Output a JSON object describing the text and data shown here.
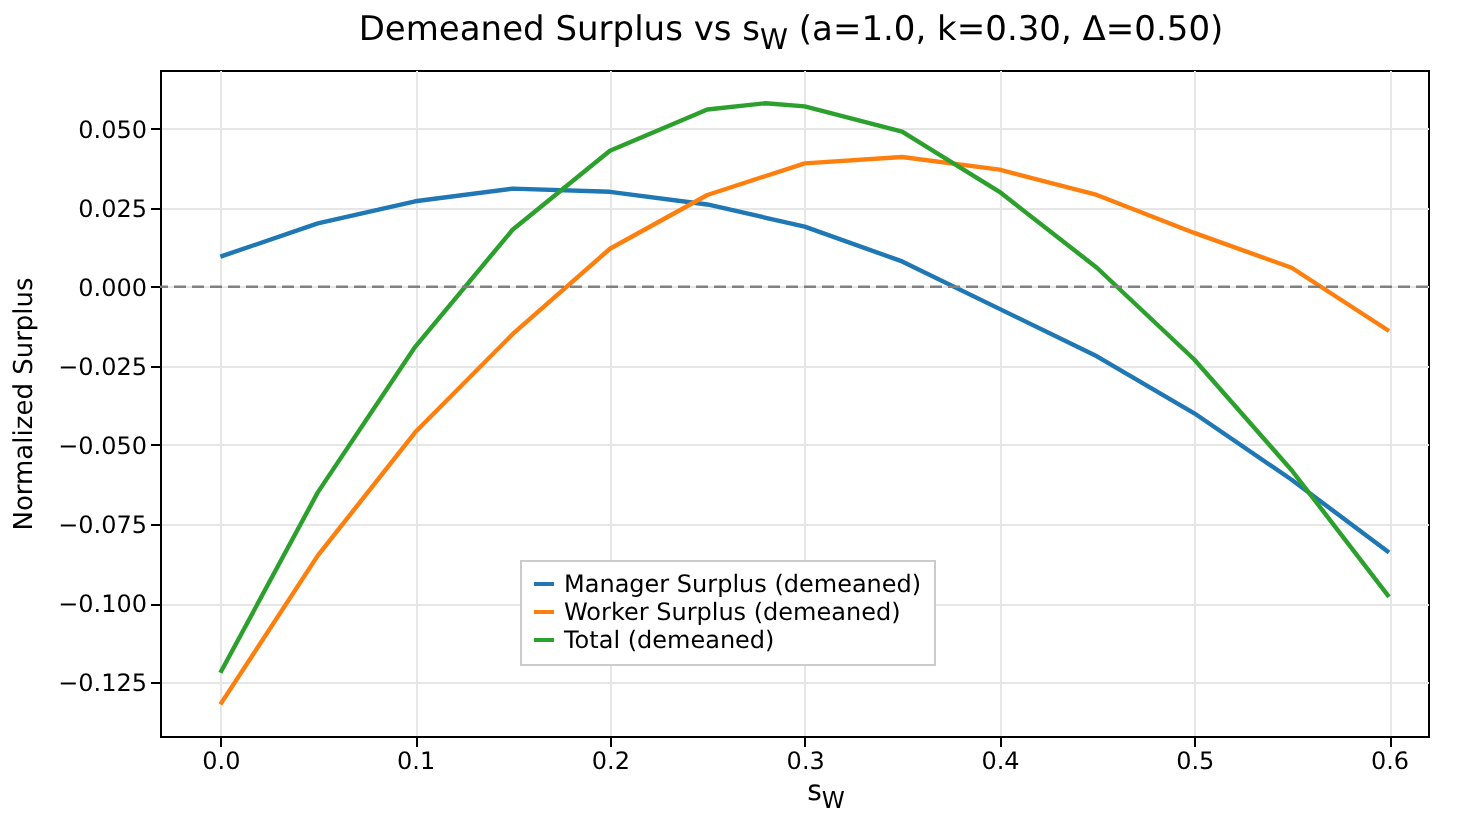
{
  "chart_data": {
    "type": "line",
    "title": "Demeaned Surplus vs s$_{W}$  (a=1.0, k=0.30, Δ=0.50)",
    "xlabel": "s$_{W}$",
    "ylabel": "Normalized Surplus",
    "x": [
      0,
      0.05,
      0.1,
      0.15,
      0.2,
      0.25,
      0.3,
      0.35,
      0.4,
      0.45,
      0.5,
      0.55,
      0.6
    ],
    "series": [
      {
        "name": "Manager Surplus (demeaned)",
        "color": "#1f77b4",
        "values": [
          0.0095,
          0.02,
          0.027,
          0.031,
          0.03,
          0.026,
          0.019,
          0.008,
          -0.007,
          -0.022,
          -0.04,
          -0.061,
          -0.084
        ]
      },
      {
        "name": "Worker Surplus (demeaned)",
        "color": "#ff7f0e",
        "values": [
          -0.132,
          -0.085,
          -0.046,
          -0.015,
          0.012,
          0.029,
          0.039,
          0.041,
          0.037,
          0.029,
          0.017,
          0.006,
          -0.014
        ]
      },
      {
        "name": "Total (demeaned)",
        "color": "#2ca02c",
        "x": [
          0,
          0.05,
          0.1,
          0.15,
          0.2,
          0.25,
          0.28,
          0.3,
          0.35,
          0.4,
          0.45,
          0.5,
          0.55,
          0.6
        ],
        "values": [
          -0.122,
          -0.065,
          -0.019,
          0.018,
          0.043,
          0.056,
          0.058,
          0.057,
          0.049,
          0.03,
          0.006,
          -0.023,
          -0.058,
          -0.098
        ]
      }
    ],
    "xlim": [
      -0.031,
      0.62
    ],
    "ylim": [
      -0.142,
      0.0685
    ],
    "xticks": [
      {
        "value": 0,
        "label": "0.0"
      },
      {
        "value": 0.1,
        "label": "0.1"
      },
      {
        "value": 0.2,
        "label": "0.2"
      },
      {
        "value": 0.3,
        "label": "0.3"
      },
      {
        "value": 0.4,
        "label": "0.4"
      },
      {
        "value": 0.5,
        "label": "0.5"
      },
      {
        "value": 0.6,
        "label": "0.6"
      }
    ],
    "yticks": [
      {
        "value": -0.125,
        "label": "−0.125"
      },
      {
        "value": -0.1,
        "label": "−0.100"
      },
      {
        "value": -0.075,
        "label": "−0.075"
      },
      {
        "value": -0.05,
        "label": "−0.050"
      },
      {
        "value": -0.025,
        "label": "−0.025"
      },
      {
        "value": 0,
        "label": "0.000"
      },
      {
        "value": 0.025,
        "label": "0.025"
      },
      {
        "value": 0.05,
        "label": "0.050"
      }
    ],
    "ref_lines": [
      {
        "axis": "y",
        "value": 0,
        "color": "#808080",
        "line_style": "dashed"
      }
    ],
    "grid": true,
    "legend": "bottom",
    "line_style": "solid",
    "marker": "none"
  }
}
